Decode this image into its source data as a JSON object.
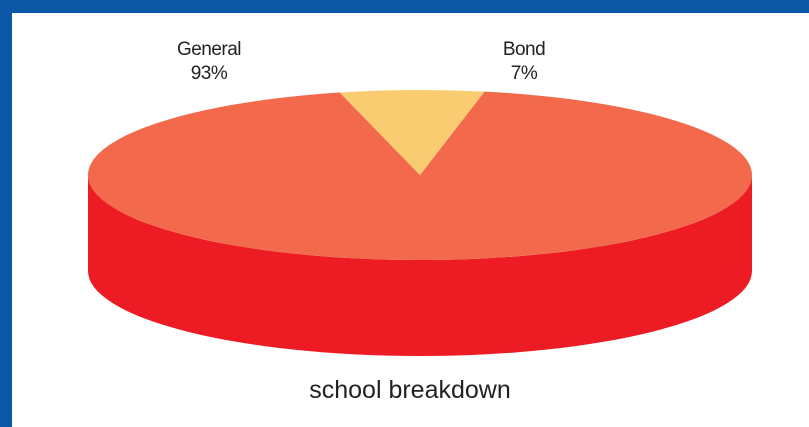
{
  "chart_data": {
    "type": "pie",
    "style": "3d",
    "title": "school breakdown",
    "legend": "none",
    "slices": [
      {
        "label": "General",
        "percent_label": "93%",
        "value": 93,
        "color": "#f26a4b",
        "side_color": "#ed1c24"
      },
      {
        "label": "Bond",
        "percent_label": "7%",
        "value": 7,
        "color": "#f9cc72",
        "side_color": "#f0b04a"
      }
    ]
  },
  "colors": {
    "frame": "#0c57a6",
    "panel": "#ffffff"
  }
}
